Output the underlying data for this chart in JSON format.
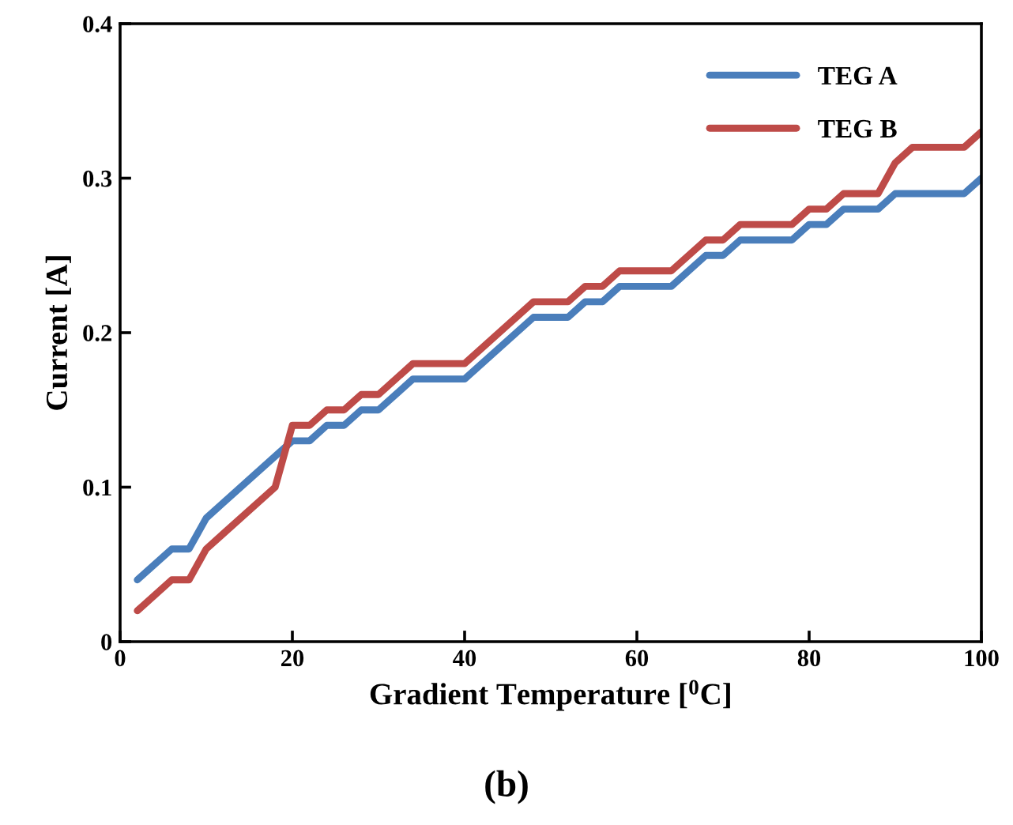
{
  "chart_data": {
    "type": "line",
    "xlabel": "Gradient Temperature [$^{0}$C]",
    "ylabel": "Current [A]",
    "annotations": [
      "(b)"
    ],
    "xlim": [
      0,
      100
    ],
    "ylim": [
      0,
      0.4
    ],
    "xticks": [
      0,
      20,
      40,
      60,
      80,
      100
    ],
    "yticks": [
      0,
      0.1,
      0.2,
      0.3,
      0.4
    ],
    "grid": false,
    "legend": "top right",
    "marker": "none",
    "line_style": "solid",
    "series": [
      {
        "name": "TEG A",
        "color": "#4a7ebb",
        "x": [
          2,
          6,
          8,
          10,
          12,
          18,
          20,
          22,
          24,
          26,
          28,
          30,
          34,
          40,
          48,
          52,
          54,
          56,
          58,
          64,
          68,
          70,
          72,
          78,
          80,
          82,
          84,
          88,
          90,
          98,
          100
        ],
        "values": [
          0.04,
          0.06,
          0.06,
          0.08,
          0.09,
          0.12,
          0.13,
          0.13,
          0.14,
          0.14,
          0.15,
          0.15,
          0.17,
          0.17,
          0.21,
          0.21,
          0.22,
          0.22,
          0.23,
          0.23,
          0.25,
          0.25,
          0.26,
          0.26,
          0.27,
          0.27,
          0.28,
          0.28,
          0.29,
          0.29,
          0.3
        ]
      },
      {
        "name": "TEG B",
        "color": "#be4b48",
        "x": [
          2,
          6,
          8,
          10,
          12,
          18,
          20,
          22,
          24,
          26,
          28,
          30,
          34,
          40,
          48,
          52,
          54,
          56,
          58,
          64,
          68,
          70,
          72,
          78,
          80,
          82,
          84,
          88,
          90,
          92,
          98,
          100
        ],
        "values": [
          0.02,
          0.04,
          0.04,
          0.06,
          0.07,
          0.1,
          0.14,
          0.14,
          0.15,
          0.15,
          0.16,
          0.16,
          0.18,
          0.18,
          0.22,
          0.22,
          0.23,
          0.23,
          0.24,
          0.24,
          0.26,
          0.26,
          0.27,
          0.27,
          0.28,
          0.28,
          0.29,
          0.29,
          0.31,
          0.32,
          0.32,
          0.33
        ]
      }
    ]
  }
}
